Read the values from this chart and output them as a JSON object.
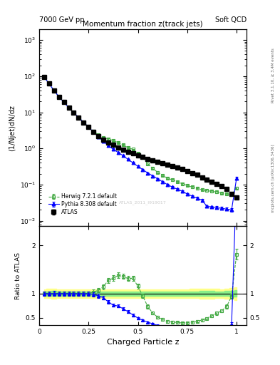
{
  "title": "Momentum fraction z(track jets)",
  "top_left_label": "7000 GeV pp",
  "top_right_label": "Soft QCD",
  "right_label_top": "Rivet 3.1.10, ≥ 3.4M events",
  "right_label_bot": "mcplots.cern.ch [arXiv:1306.3436]",
  "watermark": "ATLAS_2011_I919017",
  "xlabel": "Charged Particle z",
  "ylabel_main": "(1/Njet)dN/dz",
  "ylabel_ratio": "Ratio to ATLAS",
  "ylim_main": [
    0.007,
    2000
  ],
  "ylim_ratio": [
    0.35,
    2.4
  ],
  "xlim": [
    0.0,
    1.05
  ],
  "atlas_x": [
    0.025,
    0.05,
    0.075,
    0.1,
    0.125,
    0.15,
    0.175,
    0.2,
    0.225,
    0.25,
    0.275,
    0.3,
    0.325,
    0.35,
    0.375,
    0.4,
    0.425,
    0.45,
    0.475,
    0.5,
    0.525,
    0.55,
    0.575,
    0.6,
    0.625,
    0.65,
    0.675,
    0.7,
    0.725,
    0.75,
    0.775,
    0.8,
    0.825,
    0.85,
    0.875,
    0.9,
    0.925,
    0.95,
    0.975,
    1.0
  ],
  "atlas_y": [
    95,
    62,
    40,
    27,
    19,
    13.5,
    9.8,
    7.2,
    5.3,
    3.9,
    2.9,
    2.2,
    1.75,
    1.45,
    1.25,
    1.05,
    0.92,
    0.8,
    0.72,
    0.65,
    0.58,
    0.52,
    0.47,
    0.43,
    0.39,
    0.36,
    0.33,
    0.3,
    0.27,
    0.24,
    0.21,
    0.185,
    0.16,
    0.14,
    0.12,
    0.105,
    0.09,
    0.075,
    0.055,
    0.044
  ],
  "atlas_yerr": [
    4,
    3,
    2,
    1.2,
    0.8,
    0.6,
    0.45,
    0.32,
    0.24,
    0.17,
    0.13,
    0.1,
    0.08,
    0.065,
    0.055,
    0.047,
    0.041,
    0.036,
    0.032,
    0.029,
    0.026,
    0.023,
    0.021,
    0.019,
    0.017,
    0.016,
    0.015,
    0.013,
    0.012,
    0.011,
    0.01,
    0.009,
    0.008,
    0.007,
    0.006,
    0.005,
    0.004,
    0.004,
    0.003,
    0.003
  ],
  "herwig_x": [
    0.025,
    0.05,
    0.075,
    0.1,
    0.125,
    0.15,
    0.175,
    0.2,
    0.225,
    0.25,
    0.275,
    0.3,
    0.325,
    0.35,
    0.375,
    0.4,
    0.425,
    0.45,
    0.475,
    0.5,
    0.525,
    0.55,
    0.575,
    0.6,
    0.625,
    0.65,
    0.675,
    0.7,
    0.725,
    0.75,
    0.775,
    0.8,
    0.825,
    0.85,
    0.875,
    0.9,
    0.925,
    0.95,
    0.975,
    1.0
  ],
  "herwig_y": [
    95,
    62,
    40,
    27,
    19,
    13.5,
    9.8,
    7.2,
    5.3,
    3.9,
    3.0,
    2.35,
    2.0,
    1.85,
    1.65,
    1.45,
    1.25,
    1.05,
    0.95,
    0.75,
    0.55,
    0.38,
    0.28,
    0.22,
    0.18,
    0.15,
    0.135,
    0.12,
    0.105,
    0.095,
    0.085,
    0.078,
    0.072,
    0.068,
    0.065,
    0.062,
    0.058,
    0.055,
    0.052,
    0.08
  ],
  "herwig_yerr": [
    4,
    3,
    2,
    1.2,
    0.8,
    0.6,
    0.45,
    0.32,
    0.24,
    0.17,
    0.13,
    0.1,
    0.09,
    0.08,
    0.07,
    0.06,
    0.05,
    0.04,
    0.035,
    0.03,
    0.025,
    0.02,
    0.015,
    0.012,
    0.01,
    0.009,
    0.008,
    0.007,
    0.006,
    0.005,
    0.005,
    0.004,
    0.004,
    0.004,
    0.004,
    0.004,
    0.003,
    0.003,
    0.003,
    0.005
  ],
  "pythia_x": [
    0.025,
    0.05,
    0.075,
    0.1,
    0.125,
    0.15,
    0.175,
    0.2,
    0.225,
    0.25,
    0.275,
    0.3,
    0.325,
    0.35,
    0.375,
    0.4,
    0.425,
    0.45,
    0.475,
    0.5,
    0.525,
    0.55,
    0.575,
    0.6,
    0.625,
    0.65,
    0.675,
    0.7,
    0.725,
    0.75,
    0.775,
    0.8,
    0.825,
    0.85,
    0.875,
    0.9,
    0.925,
    0.95,
    0.975,
    1.0
  ],
  "pythia_y": [
    95,
    62,
    40,
    27,
    19,
    13.5,
    9.8,
    7.2,
    5.3,
    3.9,
    2.85,
    2.1,
    1.6,
    1.2,
    0.95,
    0.78,
    0.63,
    0.5,
    0.4,
    0.32,
    0.26,
    0.21,
    0.175,
    0.145,
    0.12,
    0.1,
    0.085,
    0.075,
    0.065,
    0.055,
    0.048,
    0.042,
    0.037,
    0.025,
    0.024,
    0.023,
    0.022,
    0.021,
    0.02,
    0.15
  ],
  "pythia_yerr": [
    4,
    3,
    2,
    1.2,
    0.8,
    0.6,
    0.45,
    0.32,
    0.24,
    0.17,
    0.12,
    0.09,
    0.07,
    0.055,
    0.042,
    0.034,
    0.028,
    0.022,
    0.018,
    0.014,
    0.011,
    0.009,
    0.008,
    0.007,
    0.006,
    0.005,
    0.004,
    0.004,
    0.003,
    0.003,
    0.003,
    0.003,
    0.003,
    0.002,
    0.002,
    0.002,
    0.002,
    0.002,
    0.002,
    0.012
  ],
  "atlas_color": "black",
  "herwig_color": "#44aa44",
  "pythia_color": "blue",
  "yellow_band_color": "#ffff88",
  "green_band_color": "#88ee88",
  "legend_labels": [
    "ATLAS",
    "Herwig 7.2.1 default",
    "Pythia 8.308 default"
  ]
}
